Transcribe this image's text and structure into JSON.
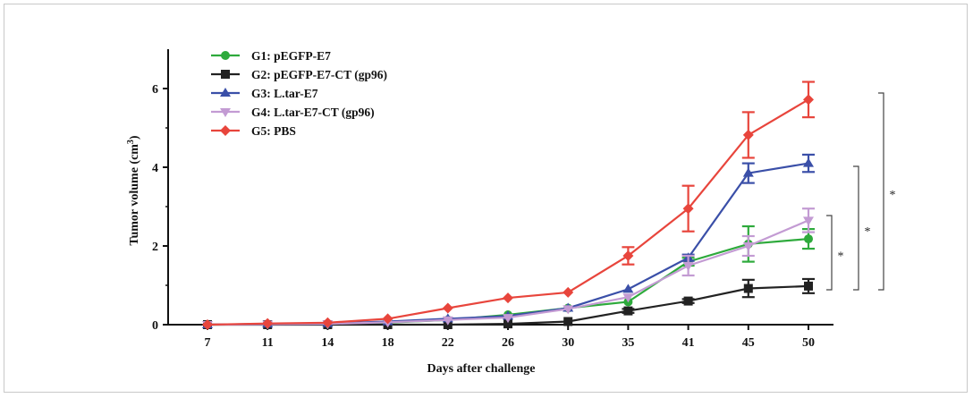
{
  "chart_data": {
    "type": "line",
    "xlabel": "Days after challenge",
    "ylabel": "Tumor volume (cm",
    "ylabel_superscript": "3",
    "ylabel_suffix": ")",
    "categories": [
      "7",
      "11",
      "14",
      "18",
      "22",
      "26",
      "30",
      "35",
      "41",
      "45",
      "50"
    ],
    "ylim": [
      0,
      7
    ],
    "yticks": [
      "0",
      "2",
      "4",
      "6"
    ],
    "ytick_values": [
      0,
      2,
      4,
      6
    ],
    "grid": false,
    "legend_position": "top-left",
    "series": [
      {
        "name": "G1: pEGFP-E7",
        "color": "#2eaa3c",
        "marker": "circle",
        "values": [
          0,
          0.01,
          0.02,
          0.05,
          0.12,
          0.25,
          0.42,
          0.58,
          1.6,
          2.05,
          2.18
        ],
        "errors": [
          0,
          0,
          0,
          0,
          0,
          0,
          0,
          0,
          0.1,
          0.45,
          0.25
        ]
      },
      {
        "name": "G2: pEGFP-E7-CT (gp96)",
        "color": "#222222",
        "marker": "square",
        "values": [
          0,
          0,
          0,
          0,
          0,
          0.02,
          0.08,
          0.35,
          0.6,
          0.92,
          0.98
        ],
        "errors": [
          0,
          0,
          0,
          0,
          0,
          0,
          0,
          0.05,
          0.05,
          0.22,
          0.18
        ]
      },
      {
        "name": "G3: L.tar-E7",
        "color": "#3a4fa8",
        "marker": "triangle-up",
        "values": [
          0,
          0.02,
          0.03,
          0.08,
          0.15,
          0.22,
          0.42,
          0.9,
          1.7,
          3.85,
          4.1
        ],
        "errors": [
          0,
          0,
          0,
          0,
          0,
          0,
          0,
          0,
          0.08,
          0.25,
          0.22
        ]
      },
      {
        "name": "G4: L.tar-E7-CT (gp96)",
        "color": "#c39bd3",
        "marker": "triangle-down",
        "values": [
          0,
          0.01,
          0.02,
          0.06,
          0.12,
          0.18,
          0.4,
          0.7,
          1.5,
          2.0,
          2.65
        ],
        "errors": [
          0,
          0,
          0,
          0,
          0,
          0,
          0,
          0,
          0.25,
          0.25,
          0.3
        ]
      },
      {
        "name": "G5: PBS",
        "color": "#e8453c",
        "marker": "diamond",
        "values": [
          0,
          0.03,
          0.05,
          0.15,
          0.42,
          0.68,
          0.82,
          1.75,
          2.95,
          4.82,
          5.72
        ],
        "errors": [
          0,
          0,
          0,
          0,
          0,
          0,
          0,
          0.22,
          0.58,
          0.58,
          0.45
        ]
      }
    ],
    "significance": [
      {
        "label": "*",
        "from_series": "G2: pEGFP-E7-CT (gp96)",
        "to_series": "G1: pEGFP-E7"
      },
      {
        "label": "*",
        "from_series": "G2: pEGFP-E7-CT (gp96)",
        "to_series": "G3: L.tar-E7"
      },
      {
        "label": "*",
        "from_series": "G2: pEGFP-E7-CT (gp96)",
        "to_series": "G5: PBS"
      }
    ]
  }
}
